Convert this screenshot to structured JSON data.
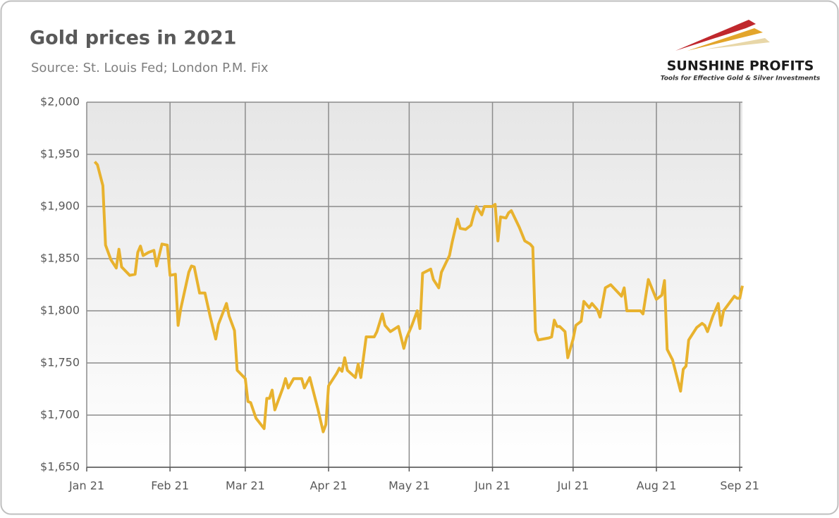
{
  "chart_data": {
    "type": "line",
    "title": "Gold prices in 2021",
    "subtitle": "Source: St. Louis Fed; London P.M. Fix",
    "color": "#e8b22e",
    "grid": true,
    "x": [
      3,
      4,
      6,
      7,
      9,
      11,
      12,
      13,
      16,
      18,
      19,
      20,
      21,
      23,
      25,
      26,
      28,
      30,
      31,
      33,
      34,
      35,
      38,
      39,
      40,
      42,
      44,
      46,
      48,
      49,
      52,
      53,
      55,
      56,
      59,
      60,
      61,
      63,
      66,
      67,
      68,
      69,
      70,
      73,
      74,
      75,
      77,
      80,
      81,
      83,
      86,
      88,
      89,
      90,
      93,
      94,
      95,
      96,
      97,
      100,
      101,
      102,
      104,
      107,
      108,
      110,
      111,
      113,
      116,
      118,
      119,
      121,
      123,
      124,
      125,
      128,
      129,
      131,
      132,
      135,
      136,
      138,
      139,
      141,
      143,
      144,
      145,
      147,
      148,
      151,
      152,
      153,
      154,
      156,
      157,
      158,
      161,
      163,
      165,
      166,
      167,
      168,
      172,
      173,
      174,
      175,
      176,
      178,
      179,
      181,
      182,
      184,
      185,
      187,
      188,
      190,
      191,
      193,
      195,
      199,
      200,
      201,
      206,
      207,
      209,
      212,
      214,
      215,
      216,
      218,
      219,
      221,
      222,
      223,
      224,
      227,
      229,
      230,
      231,
      233,
      235,
      236,
      237,
      241,
      242,
      243,
      244
    ],
    "values": [
      1943,
      1940,
      1920,
      1863,
      1849,
      1841,
      1859,
      1842,
      1834,
      1835,
      1856,
      1862,
      1853,
      1856,
      1858,
      1843,
      1864,
      1863,
      1834,
      1835,
      1786,
      1802,
      1837,
      1843,
      1842,
      1817,
      1817,
      1794,
      1773,
      1787,
      1807,
      1795,
      1781,
      1743,
      1735,
      1713,
      1712,
      1697,
      1687,
      1716,
      1716,
      1724,
      1705,
      1726,
      1735,
      1726,
      1735,
      1735,
      1726,
      1736,
      1706,
      1684,
      1691,
      1728,
      1740,
      1745,
      1742,
      1755,
      1743,
      1736,
      1749,
      1736,
      1775,
      1775,
      1780,
      1797,
      1786,
      1780,
      1785,
      1764,
      1774,
      1786,
      1800,
      1783,
      1836,
      1840,
      1830,
      1822,
      1837,
      1853,
      1866,
      1888,
      1879,
      1878,
      1882,
      1892,
      1900,
      1892,
      1900,
      1900,
      1902,
      1867,
      1890,
      1889,
      1894,
      1896,
      1880,
      1867,
      1864,
      1861,
      1780,
      1772,
      1774,
      1775,
      1791,
      1785,
      1785,
      1780,
      1755,
      1773,
      1786,
      1790,
      1809,
      1803,
      1807,
      1801,
      1794,
      1822,
      1825,
      1814,
      1822,
      1800,
      1800,
      1797,
      1830,
      1811,
      1815,
      1829,
      1763,
      1753,
      1743,
      1723,
      1744,
      1747,
      1772,
      1784,
      1788,
      1786,
      1780,
      1795,
      1807,
      1786,
      1800,
      1814,
      1812,
      1812,
      1824
    ],
    "xlim": [
      0,
      244
    ],
    "xticks": [
      {
        "value": 0,
        "label": "Jan 21"
      },
      {
        "value": 31,
        "label": "Feb 21"
      },
      {
        "value": 59,
        "label": "Mar 21"
      },
      {
        "value": 90,
        "label": "Apr 21"
      },
      {
        "value": 120,
        "label": "May 21"
      },
      {
        "value": 151,
        "label": "Jun 21"
      },
      {
        "value": 181,
        "label": "Jul 21"
      },
      {
        "value": 212,
        "label": "Aug 21"
      },
      {
        "value": 243,
        "label": "Sep 21"
      }
    ],
    "ylim": [
      1650,
      2000
    ],
    "yticks": [
      {
        "value": 1650,
        "label": "$1,650"
      },
      {
        "value": 1700,
        "label": "$1,700"
      },
      {
        "value": 1750,
        "label": "$1,750"
      },
      {
        "value": 1800,
        "label": "$1,800"
      },
      {
        "value": 1850,
        "label": "$1,850"
      },
      {
        "value": 1900,
        "label": "$1,900"
      },
      {
        "value": 1950,
        "label": "$1,950"
      },
      {
        "value": 2000,
        "label": "$2,000"
      }
    ]
  },
  "logo": {
    "name": "SUNSHINE PROFITS",
    "tagline": "Tools for Effective Gold & Silver Investments"
  }
}
